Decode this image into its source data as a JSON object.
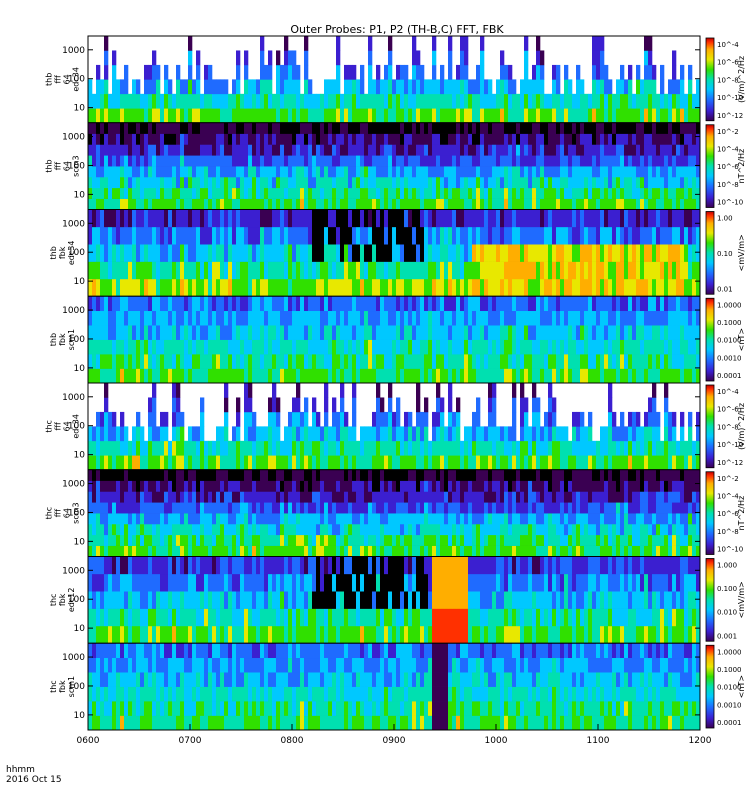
{
  "title": "Outer Probes: P1, P2 (TH-B,C) FFT, FBK",
  "footer": {
    "line1": "hhmm",
    "line2": "2016 Oct 15"
  },
  "colors": {
    "background": "#ffffff",
    "axis": "#000000",
    "colormap": [
      "#000000",
      "#3a0052",
      "#3b1fd0",
      "#1f6bff",
      "#00c8ff",
      "#00e0b0",
      "#30e000",
      "#e8e800",
      "#ffae00",
      "#ff3000",
      "#c00000"
    ]
  },
  "chart_data": {
    "type": "heatmap",
    "x_ticks": [
      "0600",
      "0700",
      "0800",
      "0900",
      "1000",
      "1100",
      "1200"
    ],
    "x_range": [
      "06:00",
      "12:00"
    ],
    "panels": [
      {
        "id": "thb-fff64-edc34",
        "label_lines": [
          "thb",
          "fff",
          "64",
          "edc34"
        ],
        "y_ticks": [
          "10",
          "100",
          "1000"
        ],
        "y_log": true,
        "colorbar": {
          "label": "(V/m)^2/Hz",
          "ticks": [
            "10^-4",
            "10^-6",
            "10^-8",
            "10^-10",
            "10^-12"
          ]
        }
      },
      {
        "id": "thb-fff64-scm3",
        "label_lines": [
          "thb",
          "fff",
          "64",
          "scm3"
        ],
        "y_ticks": [
          "10",
          "100",
          "1000"
        ],
        "y_log": true,
        "colorbar": {
          "label": "nT^2/Hz",
          "ticks": [
            "10^-2",
            "10^-4",
            "10^-6",
            "10^-8",
            "10^-10"
          ]
        }
      },
      {
        "id": "thb-fbk-edc34",
        "label_lines": [
          "thb",
          "fbk",
          "edc34"
        ],
        "y_ticks": [
          "10",
          "100",
          "1000"
        ],
        "y_log": true,
        "colorbar": {
          "label": "<mV/m>",
          "ticks": [
            "1.00",
            "0.10",
            "0.01"
          ]
        }
      },
      {
        "id": "thb-fbk-scm1",
        "label_lines": [
          "thb",
          "fbk",
          "scm1"
        ],
        "y_ticks": [
          "10",
          "100",
          "1000"
        ],
        "y_log": true,
        "colorbar": {
          "label": "<nT>",
          "ticks": [
            "1.0000",
            "0.1000",
            "0.0100",
            "0.0010",
            "0.0001"
          ]
        }
      },
      {
        "id": "thc-fff64-edc34",
        "label_lines": [
          "thc",
          "fff",
          "64",
          "edc34"
        ],
        "y_ticks": [
          "10",
          "100",
          "1000"
        ],
        "y_log": true,
        "colorbar": {
          "label": "(V/m)^2/Hz",
          "ticks": [
            "10^-4",
            "10^-6",
            "10^-8",
            "10^-10",
            "10^-12"
          ]
        }
      },
      {
        "id": "thc-fff64-scm3",
        "label_lines": [
          "thc",
          "fff",
          "64",
          "scm3"
        ],
        "y_ticks": [
          "10",
          "100",
          "1000"
        ],
        "y_log": true,
        "colorbar": {
          "label": "nT^2/Hz",
          "ticks": [
            "10^-2",
            "10^-4",
            "10^-6",
            "10^-8",
            "10^-10"
          ]
        }
      },
      {
        "id": "thc-fbk-edc12",
        "label_lines": [
          "thc",
          "fbk",
          "edc12"
        ],
        "y_ticks": [
          "10",
          "100",
          "1000"
        ],
        "y_log": true,
        "colorbar": {
          "label": "<mV/m>",
          "ticks": [
            "1.000",
            "0.100",
            "0.010",
            "0.001"
          ]
        }
      },
      {
        "id": "thc-fbk-scm1",
        "label_lines": [
          "thc",
          "fbk",
          "scm1"
        ],
        "y_ticks": [
          "10",
          "100",
          "1000"
        ],
        "y_log": true,
        "colorbar": {
          "label": "<nT>",
          "ticks": [
            "1.0000",
            "0.1000",
            "0.0100",
            "0.0010",
            "0.0001"
          ]
        }
      }
    ]
  }
}
